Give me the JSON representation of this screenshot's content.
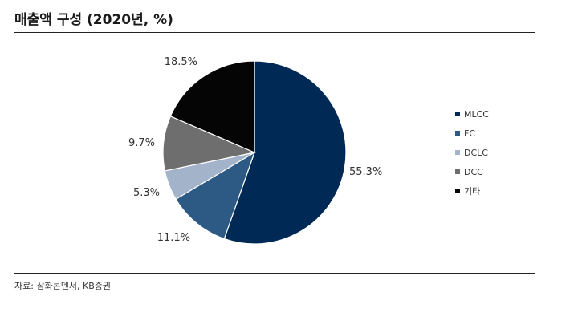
{
  "title": "매출액 구성 (2020년, %)",
  "source": "자료: 삼화콘덴서, KB증권",
  "chart_data": {
    "type": "pie",
    "title": "매출액 구성 (2020년, %)",
    "unit": "%",
    "legend_position": "right",
    "start_angle": "12 o'clock",
    "direction": "clockwise",
    "slices": [
      {
        "name": "MLCC",
        "value": 55.3,
        "label": "55.3%",
        "color": "#002a55"
      },
      {
        "name": "FC",
        "value": 11.1,
        "label": "11.1%",
        "color": "#2c5a85"
      },
      {
        "name": "DCLC",
        "value": 5.3,
        "label": "5.3%",
        "color": "#a3b3ca"
      },
      {
        "name": "DCC",
        "value": 9.7,
        "label": "9.7%",
        "color": "#6e6e6e"
      },
      {
        "name": "기타",
        "value": 18.5,
        "label": "18.5%",
        "color": "#050505"
      }
    ]
  }
}
